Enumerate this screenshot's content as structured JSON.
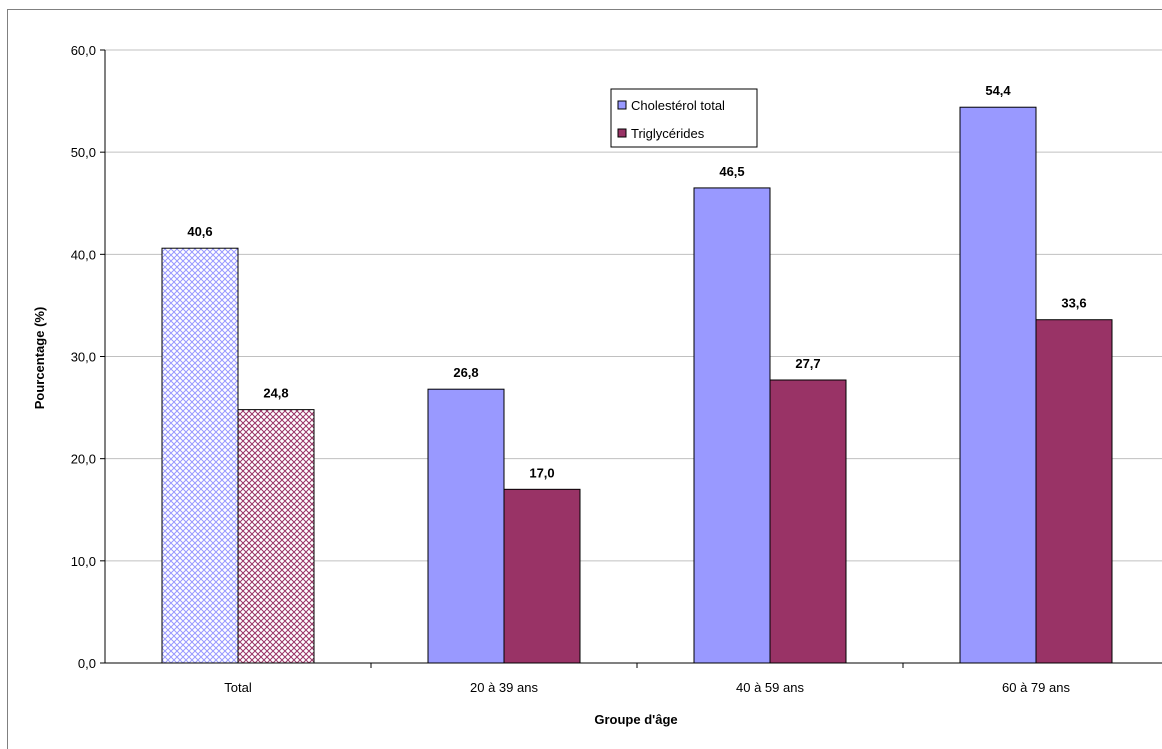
{
  "chart_data": {
    "type": "bar",
    "xlabel": "Groupe d'âge",
    "ylabel": "Pourcentage (%)",
    "ylim": [
      0,
      60
    ],
    "y_ticks": [
      "0,0",
      "10,0",
      "20,0",
      "30,0",
      "40,0",
      "50,0",
      "60,0"
    ],
    "grid": true,
    "legend_position": "top-center",
    "categories": [
      "Total",
      "20 à 39 ans",
      "40 à 59 ans",
      "60 à 79 ans"
    ],
    "series": [
      {
        "name": "Cholestérol total",
        "values": [
          40.6,
          26.8,
          46.5,
          54.4
        ],
        "labels": [
          "40,6",
          "26,8",
          "46,5",
          "54,4"
        ],
        "color": "#9999ff"
      },
      {
        "name": "Triglycérides",
        "values": [
          24.8,
          17.0,
          27.7,
          33.6
        ],
        "labels": [
          "24,8",
          "17,0",
          "27,7",
          "33,6"
        ],
        "color": "#993366"
      }
    ],
    "total_category_pattern": "crosshatch"
  }
}
